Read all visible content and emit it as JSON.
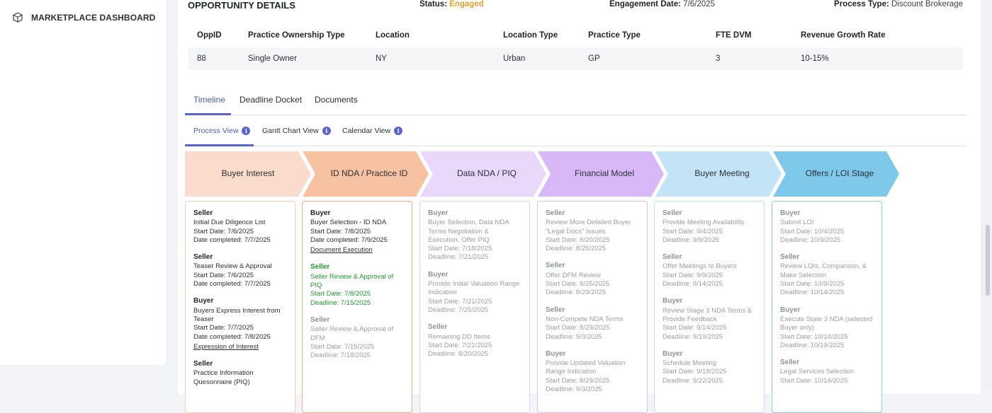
{
  "sidebar": {
    "items": [
      {
        "label": "MARKETPLACE DASHBOARD",
        "icon": "cube-icon"
      }
    ]
  },
  "opportunity": {
    "title": "OPPORTUNITY DETAILS",
    "status_label": "Status:",
    "status_value": "Engaged",
    "engagement_label": "Engagement Date:",
    "engagement_value": "7/6/2025",
    "process_label": "Process Type:",
    "process_value": "Discount Brokerage"
  },
  "info_table": {
    "headers": [
      "OppID",
      "Practice Ownership Type",
      "Location",
      "Location Type",
      "Practice Type",
      "FTE DVM",
      "Revenue Growth Rate"
    ],
    "row": [
      "88",
      "Single Owner",
      "NY",
      "Urban",
      "GP",
      "3",
      "10-15%"
    ]
  },
  "tabs": [
    "Timeline",
    "Deadline Docket",
    "Documents"
  ],
  "subtabs": [
    "Process View",
    "Gantt Chart View",
    "Calendar View"
  ],
  "stages": [
    {
      "label": "Buyer Interest",
      "color": "#fbdccc"
    },
    {
      "label": "ID NDA / Practice ID",
      "color": "#f6c2a2"
    },
    {
      "label": "Data NDA / PIQ",
      "color": "#ead8fb"
    },
    {
      "label": "Financial Model",
      "color": "#d8b8f6"
    },
    {
      "label": "Buyer Meeting",
      "color": "#c3e4f6"
    },
    {
      "label": "Offers / LOI Stage",
      "color": "#7ec8ea"
    }
  ],
  "columns": [
    {
      "border": "#f3cfbd",
      "tasks": [
        {
          "tone": "dark",
          "role": "Seller",
          "lines": [
            "Initial Due Diligence List",
            "Start Date: 7/6/2025",
            "Date completed: 7/7/2025"
          ]
        },
        {
          "tone": "dark",
          "role": "Seller",
          "lines": [
            "Teaser Review & Approval",
            "Start Date: 7/6/2025",
            "Date completed: 7/7/2025"
          ]
        },
        {
          "tone": "dark",
          "role": "Buyer",
          "lines": [
            "Buyers Express Interest from Teaser",
            "Start Date: 7/7/2025",
            "Date completed: 7/8/2025"
          ],
          "link": "Expression of Interest"
        },
        {
          "tone": "dark",
          "role": "Seller",
          "lines": [
            "Practice Information Quesonnaire (PIQ)"
          ]
        }
      ]
    },
    {
      "border": "#eeaf86",
      "tasks": [
        {
          "tone": "dark",
          "role": "Buyer",
          "lines": [
            "Buyer Selection - ID NDA",
            "Start Date: 7/8/2025",
            "Date completed: 7/9/2025"
          ],
          "link": "Document Execution"
        },
        {
          "tone": "green",
          "role": "Seller",
          "lines": [
            "Seller Review & Approval of PIQ",
            "Start Date: 7/8/2025",
            "Deadline: 7/15/2025"
          ]
        },
        {
          "tone": "gray",
          "role": "Seller",
          "lines": [
            "Seller Review & Approval of DFM",
            "Start Date: 7/15/2025",
            "Deadline: 7/18/2025"
          ]
        }
      ]
    },
    {
      "border": "#e1cdf6",
      "tasks": [
        {
          "tone": "gray",
          "role": "Buyer",
          "lines": [
            "Buyer Selection, Data NDA Terms Negotiation & Execution, Offer PIQ",
            "Start Date: 7/18/2025",
            "Deadline: 7/21/2025"
          ]
        },
        {
          "tone": "gray",
          "role": "Buyer",
          "lines": [
            "Provide Initial Valuation Range Indication",
            "Start Date: 7/21/2025",
            "Deadline: 7/25/2025"
          ]
        },
        {
          "tone": "gray",
          "role": "Seller",
          "lines": [
            "Remaining DD Items",
            "Start Date: 7/21/2025",
            "Deadline: 8/20/2025"
          ]
        }
      ]
    },
    {
      "border": "#d9bdf3",
      "tasks": [
        {
          "tone": "gray",
          "role": "Seller",
          "lines": [
            "Review More Detailed Buyer \"Legal Docs\" Issues",
            "Start Date: 8/20/2025",
            "Deadline: 8/25/2025"
          ]
        },
        {
          "tone": "gray",
          "role": "Seller",
          "lines": [
            "Offer DFM Review",
            "Start Date: 8/25/2025",
            "Deadline: 8/29/2025"
          ]
        },
        {
          "tone": "gray",
          "role": "Seller",
          "lines": [
            "Non-Compete NDA Terms",
            "Start Date: 8/29/2025",
            "Deadline: 9/3/2025"
          ]
        },
        {
          "tone": "gray",
          "role": "Buyer",
          "lines": [
            "Provide Updated Valuation Range Indication",
            "Start Date: 8/29/2025",
            "Deadline: 9/3/2025"
          ]
        }
      ]
    },
    {
      "border": "#bfe0f1",
      "tasks": [
        {
          "tone": "gray",
          "role": "Seller",
          "lines": [
            "Provide Meeting Availability",
            "Start Date: 9/4/2025",
            "Deadline: 9/9/2025"
          ]
        },
        {
          "tone": "gray",
          "role": "Seller",
          "lines": [
            "Offer Meetings to Buyers",
            "Start Date: 9/9/2025",
            "Deadline: 9/14/2025"
          ]
        },
        {
          "tone": "gray",
          "role": "Buyer",
          "lines": [
            "Review Stage 3 NDA Terms & Provide Feedback",
            "Start Date: 9/14/2025",
            "Deadline: 9/19/2025"
          ]
        },
        {
          "tone": "gray",
          "role": "Buyer",
          "lines": [
            "Schedule Meeting",
            "Start Date: 9/19/2025",
            "Deadline: 9/22/2025"
          ]
        }
      ]
    },
    {
      "border": "#8ccbe9",
      "tasks": [
        {
          "tone": "gray",
          "role": "Buyer",
          "lines": [
            "Submit LOI",
            "Start Date: 10/4/2025",
            "Deadline: 10/9/2025"
          ]
        },
        {
          "tone": "gray",
          "role": "Seller",
          "lines": [
            "Review LOIs, Comparison, & Make Selection",
            "Start Date: 10/9/2025",
            "Deadline: 10/14/2025"
          ]
        },
        {
          "tone": "gray",
          "role": "Buyer",
          "lines": [
            "Execute State 3 NDA (selected Buyer only)",
            "Start Date: 10/14/2025",
            "Deadline: 10/19/2025"
          ]
        },
        {
          "tone": "gray",
          "role": "Seller",
          "lines": [
            "Legal Services Selection",
            "Start Date: 10/14/2025"
          ]
        }
      ]
    }
  ]
}
